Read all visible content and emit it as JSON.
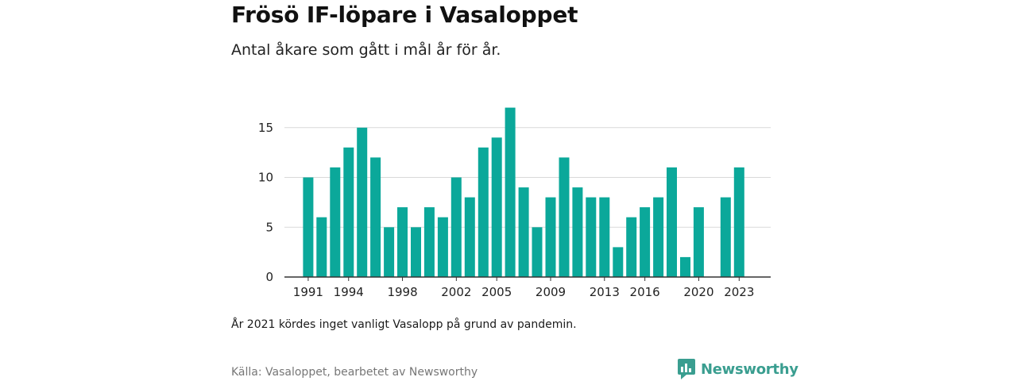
{
  "title": "Frösö IF-löpare i Vasaloppet",
  "subtitle": "Antal åkare som gått i mål år för år.",
  "note": "År 2021 kördes inget vanligt Vasalopp på grund av pandemin.",
  "source": "Källa: Vasaloppet, bearbetet av Newsworthy",
  "brand": "Newsworthy",
  "colors": {
    "bar": "#0ba89a",
    "grid": "#d9d9d9",
    "axis": "#333333",
    "brand": "#3a9e90"
  },
  "chart_data": {
    "type": "bar",
    "title": "",
    "xlabel": "",
    "ylabel": "",
    "ylim": [
      0,
      17
    ],
    "yticks": [
      0,
      5,
      10,
      15
    ],
    "xtick_labels": [
      "1991",
      "1994",
      "1998",
      "2002",
      "2005",
      "2009",
      "2013",
      "2016",
      "2020",
      "2023"
    ],
    "grid": true,
    "categories": [
      1991,
      1992,
      1993,
      1994,
      1995,
      1996,
      1997,
      1998,
      1999,
      2000,
      2001,
      2002,
      2003,
      2004,
      2005,
      2006,
      2007,
      2008,
      2009,
      2010,
      2011,
      2012,
      2013,
      2014,
      2015,
      2016,
      2017,
      2018,
      2019,
      2020,
      2021,
      2022,
      2023
    ],
    "values": [
      10,
      6,
      11,
      13,
      15,
      12,
      5,
      7,
      5,
      7,
      6,
      10,
      8,
      13,
      14,
      17,
      9,
      5,
      8,
      12,
      9,
      8,
      8,
      3,
      6,
      7,
      8,
      11,
      2,
      7,
      null,
      8,
      11
    ]
  }
}
